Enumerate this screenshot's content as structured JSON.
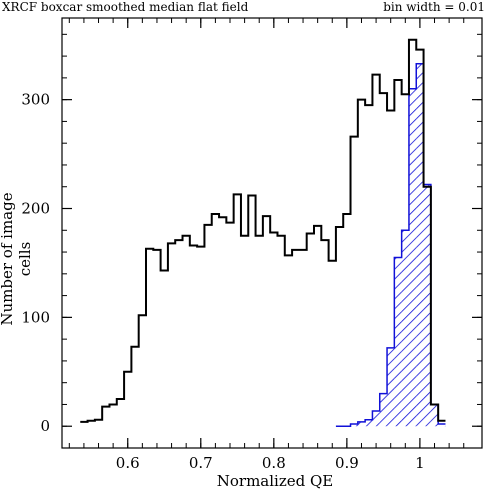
{
  "chart_data": {
    "type": "histogram",
    "title": "XRCF boxcar smoothed median flat field",
    "subtitle": "bin width = 0.01",
    "xlabel": "Normalized QE",
    "ylabel": "Number of image cells",
    "xlim": [
      0.51,
      1.085
    ],
    "ylim": [
      -20,
      375
    ],
    "xticks": [
      "0.6",
      "0.7",
      "0.8",
      "0.9",
      "1"
    ],
    "yticks": [
      "0",
      "100",
      "200",
      "300"
    ],
    "bin_width": 0.01,
    "series": [
      {
        "bin_starts": [
          0.535,
          0.545,
          0.555,
          0.565,
          0.575,
          0.585,
          0.595,
          0.605,
          0.615,
          0.625,
          0.635,
          0.645,
          0.655,
          0.665,
          0.675,
          0.685,
          0.695,
          0.705,
          0.715,
          0.725,
          0.735,
          0.745,
          0.755,
          0.765,
          0.775,
          0.785,
          0.795,
          0.805,
          0.815,
          0.825,
          0.835,
          0.845,
          0.855,
          0.865,
          0.875,
          0.885,
          0.895,
          0.905,
          0.915,
          0.925,
          0.935,
          0.945,
          0.955,
          0.965,
          0.975,
          0.985,
          0.995,
          1.005,
          1.015,
          1.025
        ],
        "values": [
          4,
          5,
          6,
          18,
          20,
          25,
          50,
          73,
          102,
          163,
          162,
          143,
          168,
          171,
          175,
          166,
          165,
          185,
          195,
          192,
          187,
          213,
          175,
          212,
          175,
          193,
          178,
          175,
          157,
          162,
          162,
          177,
          184,
          171,
          152,
          183,
          195,
          266,
          300,
          295,
          323,
          306,
          290,
          318,
          305,
          355,
          346,
          220,
          20,
          5
        ]
      },
      {
        "color": "#1010d8",
        "bin_starts": [
          0.885,
          0.895,
          0.905,
          0.915,
          0.925,
          0.935,
          0.945,
          0.955,
          0.965,
          0.975,
          0.985,
          0.995,
          1.005,
          1.015,
          1.025
        ],
        "values": [
          0,
          0,
          2,
          4,
          6,
          14,
          30,
          72,
          155,
          180,
          310,
          333,
          222,
          20,
          2
        ]
      }
    ]
  }
}
